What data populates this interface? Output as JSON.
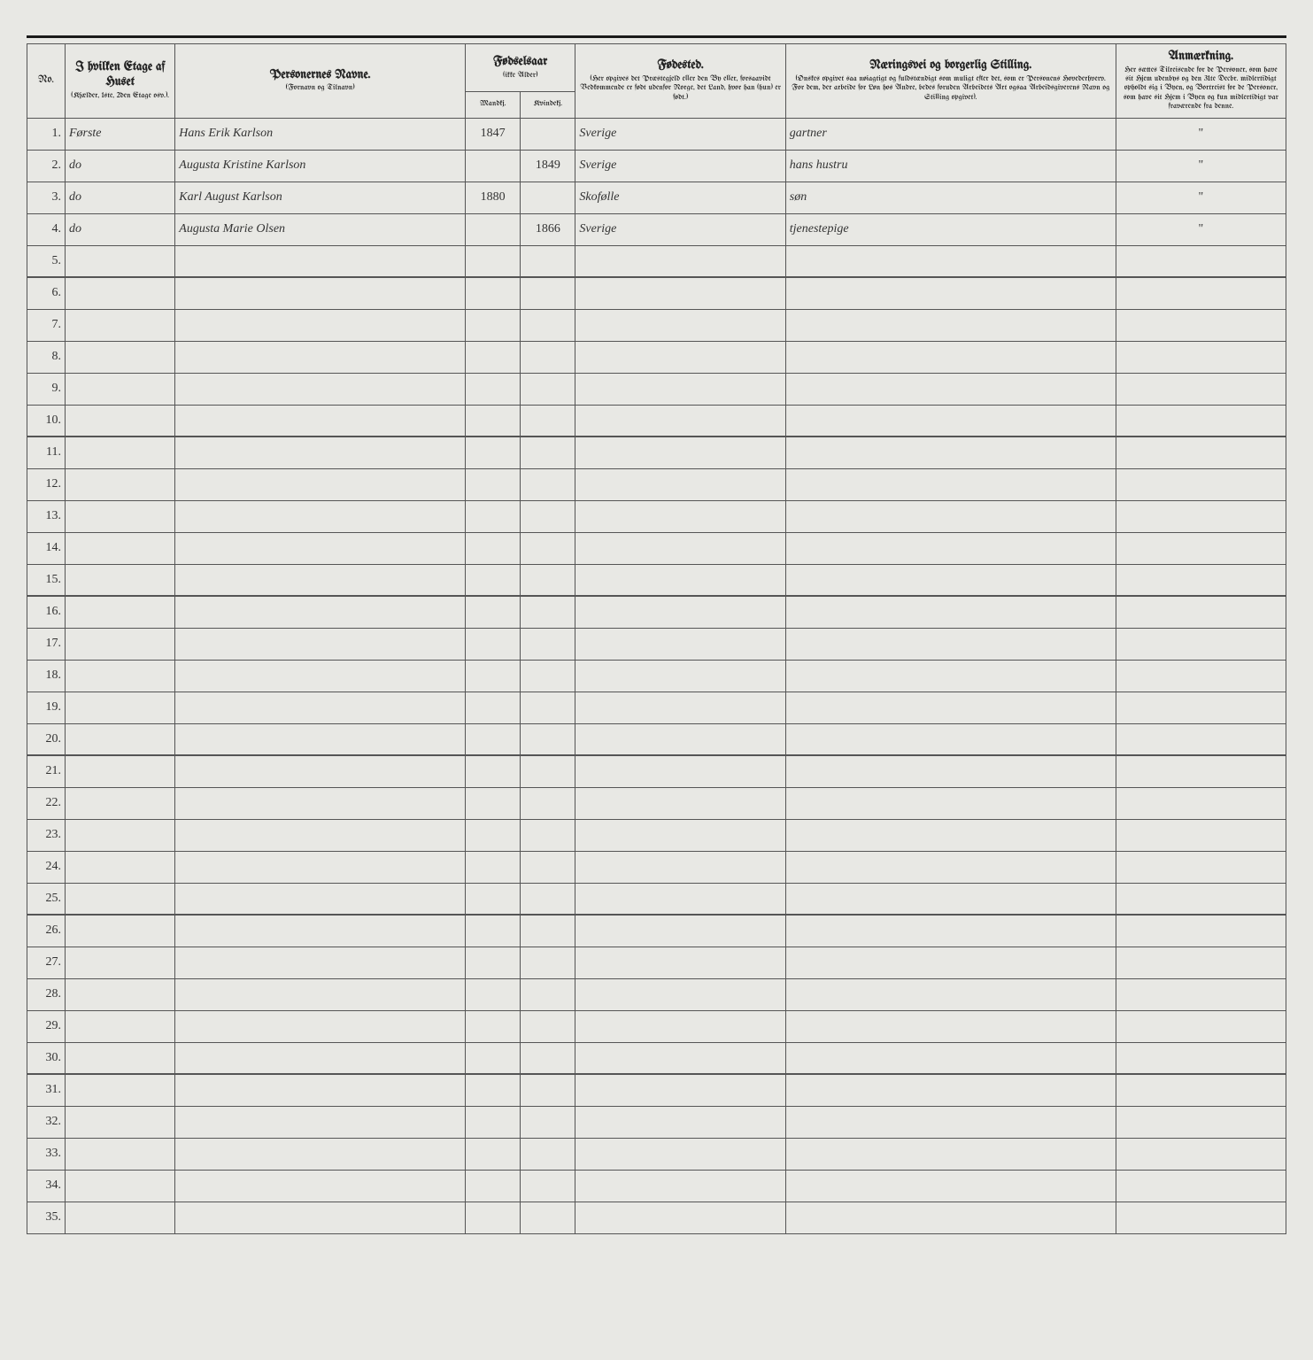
{
  "headers": {
    "no": "No.",
    "etage": {
      "title": "I hvilken Etage af Huset",
      "sub": "(Kjælder, 1ste, 2den Etage osv.)."
    },
    "name": {
      "title": "Personernes Navne.",
      "sub": "(Fornavn og Tilnavn)"
    },
    "year": {
      "title": "Fødselsaar",
      "sub": "(ikke Alder)",
      "m": "Mandkj.",
      "f": "Kvindekj."
    },
    "birthplace": {
      "title": "Fødested.",
      "sub": "(Her opgives det Præstegjeld eller den By eller, forsaavidt Vedkommende er født udenfor Norge, det Land, hvor han (hun) er født.)"
    },
    "occ": {
      "title": "Næringsvei og borgerlig Stilling.",
      "sub": "(Ønskes opgivet saa nøiagtigt og fuldstændigt som muligt efter det, som er Personens Hovederhverv. For dem, der arbeide for Løn hos Andre, bedes foruden Arbeidets Art ogsaa Arbeidsgiverens Navn og Stilling opgivet)."
    },
    "note": {
      "title": "Anmærkning.",
      "sub": "Her sættes Tilreisende for de Personer, som have sit Hjem udenbys og den 31te Decbr. midlertidigt opholdt sig i Byen, og Bortreist for de Personer, som have sit Hjem i Byen og kun midlertidigt var fraværende fra denne."
    }
  },
  "rows": [
    {
      "n": "1.",
      "etage": "Første",
      "name": "Hans Erik Karlson",
      "ym": "1847",
      "yf": "",
      "birth": "Sverige",
      "occ": "gartner",
      "note": "\""
    },
    {
      "n": "2.",
      "etage": "do",
      "name": "Augusta Kristine Karlson",
      "ym": "",
      "yf": "1849",
      "birth": "Sverige",
      "occ": "hans hustru",
      "note": "\""
    },
    {
      "n": "3.",
      "etage": "do",
      "name": "Karl August Karlson",
      "ym": "1880",
      "yf": "",
      "birth": "Skofølle",
      "occ": "søn",
      "note": "\""
    },
    {
      "n": "4.",
      "etage": "do",
      "name": "Augusta Marie Olsen",
      "ym": "",
      "yf": "1866",
      "birth": "Sverige",
      "occ": "tjenestepige",
      "note": "\""
    }
  ],
  "totalRows": 35
}
